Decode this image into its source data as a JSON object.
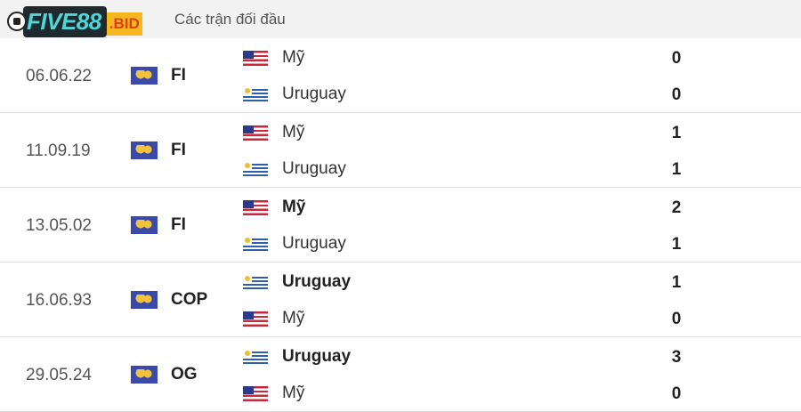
{
  "header": {
    "title": "Các trận đối đầu"
  },
  "logo": {
    "main": "FIVE88",
    "suffix": ".BID"
  },
  "matches": [
    {
      "date": "06.06.22",
      "competition": "FI",
      "home": {
        "name": "Mỹ",
        "flag": "us",
        "score": "0",
        "winner": false
      },
      "away": {
        "name": "Uruguay",
        "flag": "uy",
        "score": "0",
        "winner": false
      }
    },
    {
      "date": "11.09.19",
      "competition": "FI",
      "home": {
        "name": "Mỹ",
        "flag": "us",
        "score": "1",
        "winner": false
      },
      "away": {
        "name": "Uruguay",
        "flag": "uy",
        "score": "1",
        "winner": false
      }
    },
    {
      "date": "13.05.02",
      "competition": "FI",
      "home": {
        "name": "Mỹ",
        "flag": "us",
        "score": "2",
        "winner": true
      },
      "away": {
        "name": "Uruguay",
        "flag": "uy",
        "score": "1",
        "winner": false
      }
    },
    {
      "date": "16.06.93",
      "competition": "COP",
      "home": {
        "name": "Uruguay",
        "flag": "uy",
        "score": "1",
        "winner": true
      },
      "away": {
        "name": "Mỹ",
        "flag": "us",
        "score": "0",
        "winner": false
      }
    },
    {
      "date": "29.05.24",
      "competition": "OG",
      "home": {
        "name": "Uruguay",
        "flag": "uy",
        "score": "3",
        "winner": true
      },
      "away": {
        "name": "Mỹ",
        "flag": "us",
        "score": "0",
        "winner": false
      }
    }
  ]
}
